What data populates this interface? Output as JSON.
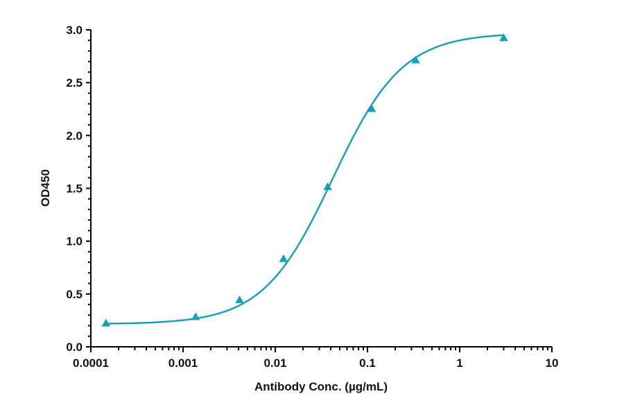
{
  "chart_data": {
    "type": "line",
    "title": "",
    "xlabel": "Antibody Conc. (µg/mL)",
    "ylabel": "OD450",
    "xscale": "log",
    "xlim": [
      0.0001,
      10
    ],
    "ylim": [
      0,
      3.0
    ],
    "x_ticks": [
      "0.0001",
      "0.001",
      "0.01",
      "0.1",
      "1",
      "10"
    ],
    "y_ticks": [
      "0.0",
      "0.5",
      "1.0",
      "1.5",
      "2.0",
      "2.5",
      "3.0"
    ],
    "grid": false,
    "legend": null,
    "series": [
      {
        "name": "OD450",
        "marker": "triangle",
        "color": "#1a9fba",
        "fit": "4PL sigmoidal",
        "x": [
          0.000146,
          0.00137,
          0.0041,
          0.0123,
          0.037,
          0.111,
          0.333,
          3.0
        ],
        "y": [
          0.22,
          0.28,
          0.44,
          0.83,
          1.51,
          2.25,
          2.71,
          2.92
        ]
      }
    ]
  },
  "axes": {
    "x_title": "Antibody Conc. (µg/mL)",
    "y_title": "OD450"
  }
}
